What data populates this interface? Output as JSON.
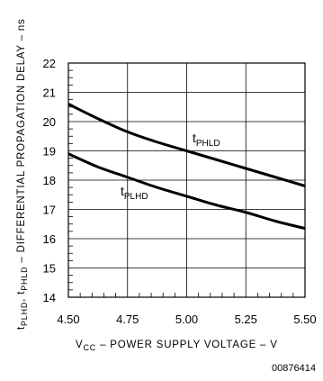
{
  "chart_data": {
    "type": "line",
    "x": [
      4.5,
      4.75,
      5.0,
      5.25,
      5.5
    ],
    "xlim": [
      4.5,
      5.5
    ],
    "ylim": [
      14,
      22
    ],
    "xticks": [
      4.5,
      4.75,
      5.0,
      5.25,
      5.5
    ],
    "yticks": [
      14,
      15,
      16,
      17,
      18,
      19,
      20,
      21,
      22
    ],
    "xtick_labels": [
      "4.50",
      "4.75",
      "5.00",
      "5.25",
      "5.50"
    ],
    "ytick_labels": [
      "14",
      "15",
      "16",
      "17",
      "18",
      "19",
      "20",
      "21",
      "22"
    ],
    "grid": true,
    "series": [
      {
        "name": "tPHLD",
        "label_base": "t",
        "label_sub": "PHLD",
        "x": [
          4.5,
          4.625,
          4.75,
          4.875,
          5.0,
          5.125,
          5.25,
          5.375,
          5.5
        ],
        "values": [
          20.6,
          20.1,
          19.65,
          19.3,
          19.0,
          18.7,
          18.4,
          18.1,
          17.8
        ]
      },
      {
        "name": "tPLHD",
        "label_base": "t",
        "label_sub": "PLHD",
        "x": [
          4.5,
          4.625,
          4.75,
          4.875,
          5.0,
          5.125,
          5.25,
          5.375,
          5.5
        ],
        "values": [
          18.9,
          18.45,
          18.1,
          17.75,
          17.45,
          17.15,
          16.9,
          16.6,
          16.35
        ]
      }
    ],
    "ylabel": {
      "t1": "t",
      "s1": "PLHD",
      "sep": ", ",
      "t2": "t",
      "s2": "PHLD",
      "rest": " – DIFFERENTIAL PROPAGATION DELAY – ns"
    },
    "xlabel": {
      "t1": "V",
      "s1": "CC",
      "rest": " – POWER SUPPLY VOLTAGE – V"
    }
  },
  "figure_id": "00876414"
}
